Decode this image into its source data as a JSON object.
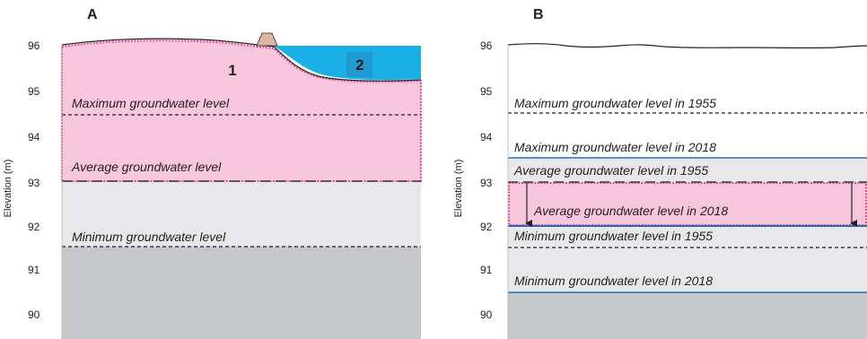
{
  "panels": {
    "a": {
      "letter": "A",
      "ylabel": "Elevation (m)",
      "ticks": [
        "96",
        "95",
        "94",
        "93",
        "92",
        "91",
        "90"
      ],
      "labels": {
        "max": "Maximum groundwater level",
        "avg": "Average groundwater level",
        "min": "Minimum groundwater level"
      },
      "markers": {
        "one": "1",
        "two": "2"
      }
    },
    "b": {
      "letter": "B",
      "ylabel": "Elevation (m)",
      "ticks": [
        "96",
        "95",
        "94",
        "93",
        "92",
        "91",
        "90"
      ],
      "labels": {
        "max1955": "Maximum groundwater level in 1955",
        "max2018": "Maximum groundwater level in 2018",
        "avg1955": "Average groundwater level in 1955",
        "avg2018": "Average groundwater level in 2018",
        "min1955": "Minimum groundwater level in 1955",
        "min2018": "Minimum groundwater level in 2018"
      }
    }
  },
  "colors": {
    "pink_fill": "#f7c6dc",
    "pink_border": "#e0479a",
    "light_gray": "#e8e8ea",
    "dark_gray": "#c6c7c9",
    "water": "#1ab0e6",
    "water_label_box": "#2a86c2",
    "levee": "#dcb8a4",
    "blue_line": "#1f6fb5"
  }
}
